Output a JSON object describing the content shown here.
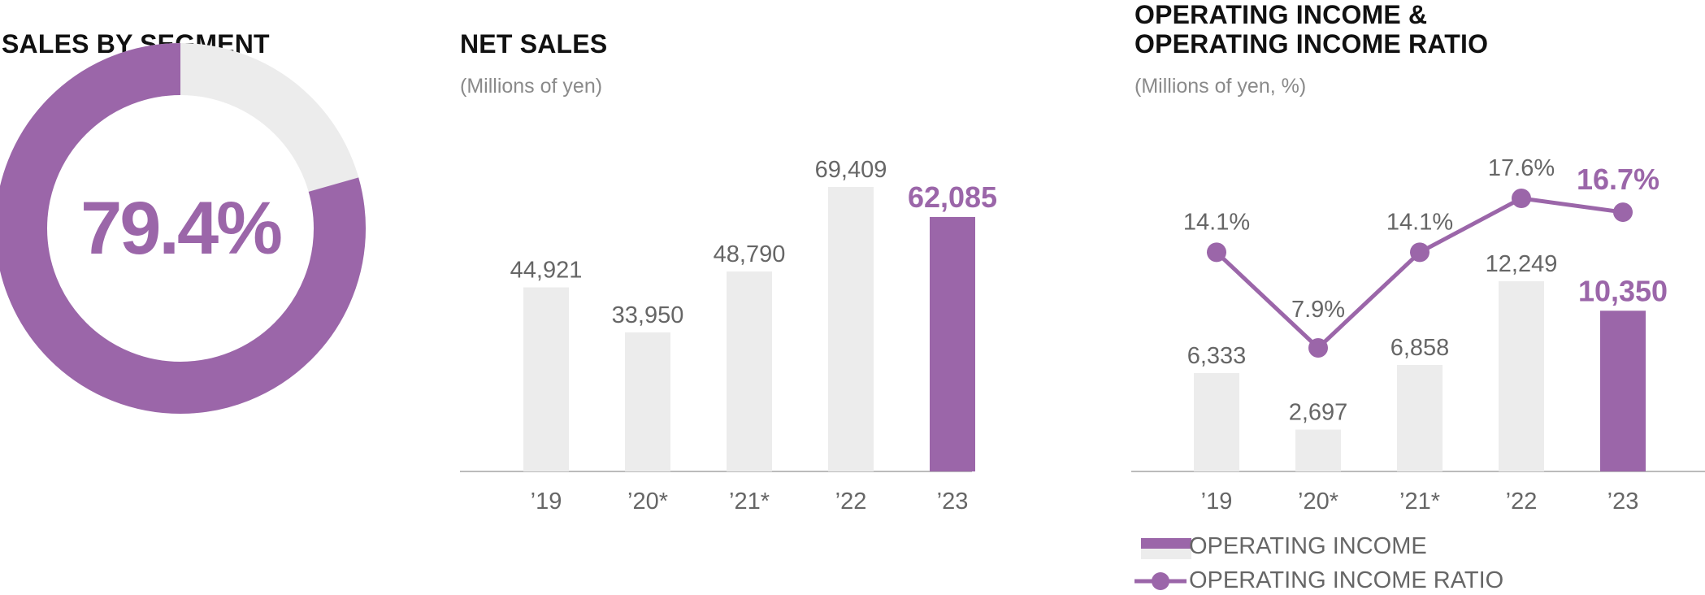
{
  "colors": {
    "accent": "#9b66a9",
    "bar": "#ececec",
    "axis": "#bbbbbb",
    "label": "#666666",
    "donut_rest": "#ececec"
  },
  "segment_panel": {
    "title": "SALES BY SEGMENT",
    "center_label": "79.4%"
  },
  "net_sales_panel": {
    "title": "NET SALES",
    "unit": "(Millions of yen)"
  },
  "operating_panel": {
    "title_line1": "OPERATING INCOME &",
    "title_line2": "OPERATING INCOME RATIO",
    "unit": "(Millions of yen, %)",
    "legend_bar": "OPERATING INCOME",
    "legend_line": "OPERATING INCOME RATIO"
  },
  "chart_data": [
    {
      "type": "pie",
      "title": "SALES BY SEGMENT",
      "slices": [
        {
          "label": "79.4%",
          "value": 79.4,
          "color": "#9b66a9"
        },
        {
          "value": 20.6,
          "color": "#ececec"
        }
      ]
    },
    {
      "type": "bar",
      "title": "NET SALES",
      "subtitle": "(Millions of yen)",
      "categories": [
        "’19",
        "’20*",
        "’21*",
        "’22",
        "’23"
      ],
      "values": [
        44921,
        33950,
        48790,
        69409,
        62085
      ],
      "value_labels": [
        "44,921",
        "33,950",
        "48,790",
        "69,409",
        "62,085"
      ],
      "highlight_index": 4,
      "ylim": [
        0,
        80000
      ]
    },
    {
      "type": "bar",
      "title": "OPERATING INCOME & OPERATING INCOME RATIO",
      "subtitle": "(Millions of yen, %)",
      "categories": [
        "’19",
        "’20*",
        "’21*",
        "’22",
        "’23"
      ],
      "series": [
        {
          "name": "OPERATING INCOME",
          "type": "bar",
          "values": [
            6333,
            2697,
            6858,
            12249,
            10350
          ],
          "labels": [
            "6,333",
            "2,697",
            "6,858",
            "12,249",
            "10,350"
          ]
        },
        {
          "name": "OPERATING INCOME RATIO",
          "type": "line",
          "values": [
            14.1,
            7.9,
            14.1,
            17.6,
            16.7
          ],
          "labels": [
            "14.1%",
            "7.9%",
            "14.1%",
            "17.6%",
            "16.7%"
          ]
        }
      ],
      "highlight_index": 4,
      "ylim_bars": [
        0,
        15000
      ],
      "ylim_ratio": [
        0,
        20
      ]
    }
  ]
}
